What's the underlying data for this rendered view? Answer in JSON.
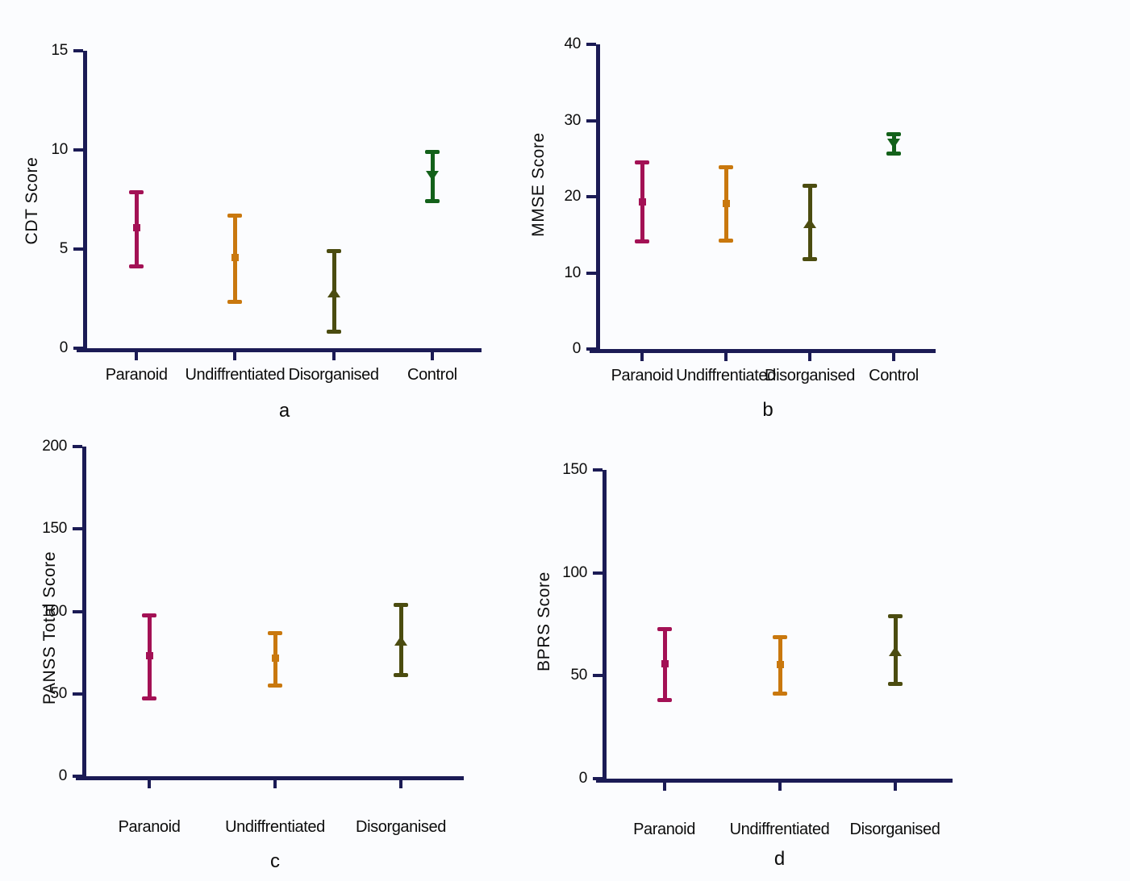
{
  "colors": {
    "background": "#FBFCFE",
    "axis": "#1B1B55",
    "text": "#0C0C0C",
    "paranoid": "#A31155",
    "undiffrentiated": "#C9780E",
    "disorganised": "#4B4C10",
    "control": "#13611A"
  },
  "markers": {
    "Paranoid": "square",
    "Undiffrentiated": "square",
    "Disorganised": "triangle-up",
    "Control": "triangle-down"
  },
  "chart_data": [
    {
      "panel": "a",
      "type": "errorbar",
      "title": "",
      "xlabel": "",
      "ylabel": "CDT Score",
      "ylim": [
        0,
        15
      ],
      "yticks": [
        0,
        5,
        10,
        15
      ],
      "grid": false,
      "legend": "none",
      "categories": [
        "Paranoid",
        "Undiffrentiated",
        "Disorganised",
        "Control"
      ],
      "series": [
        {
          "name": "Paranoid",
          "mean": 6.1,
          "lower": 4.1,
          "upper": 7.9
        },
        {
          "name": "Undiffrentiated",
          "mean": 4.6,
          "lower": 2.3,
          "upper": 6.7
        },
        {
          "name": "Disorganised",
          "mean": 2.8,
          "lower": 0.8,
          "upper": 4.9
        },
        {
          "name": "Control",
          "mean": 8.7,
          "lower": 7.4,
          "upper": 9.9
        }
      ]
    },
    {
      "panel": "b",
      "type": "errorbar",
      "title": "",
      "xlabel": "",
      "ylabel": "MMSE Score",
      "ylim": [
        0,
        40
      ],
      "yticks": [
        0,
        10,
        20,
        30,
        40
      ],
      "grid": false,
      "legend": "none",
      "categories": [
        "Paranoid",
        "Undiffrentiated",
        "Disorganised",
        "Control"
      ],
      "series": [
        {
          "name": "Paranoid",
          "mean": 19.4,
          "lower": 14.1,
          "upper": 24.5
        },
        {
          "name": "Undiffrentiated",
          "mean": 19.2,
          "lower": 14.2,
          "upper": 23.9
        },
        {
          "name": "Disorganised",
          "mean": 16.5,
          "lower": 11.7,
          "upper": 21.5
        },
        {
          "name": "Control",
          "mean": 27.0,
          "lower": 25.6,
          "upper": 28.3
        }
      ]
    },
    {
      "panel": "c",
      "type": "errorbar",
      "title": "",
      "xlabel": "",
      "ylabel": "PANSS Total Score",
      "ylim": [
        0,
        200
      ],
      "yticks": [
        0,
        50,
        100,
        150,
        200
      ],
      "grid": false,
      "legend": "none",
      "categories": [
        "Paranoid",
        "Undiffrentiated",
        "Disorganised"
      ],
      "series": [
        {
          "name": "Paranoid",
          "mean": 73.5,
          "lower": 47,
          "upper": 98
        },
        {
          "name": "Undiffrentiated",
          "mean": 72,
          "lower": 55,
          "upper": 87
        },
        {
          "name": "Disorganised",
          "mean": 82,
          "lower": 61,
          "upper": 104
        }
      ]
    },
    {
      "panel": "d",
      "type": "errorbar",
      "title": "",
      "xlabel": "",
      "ylabel": "BPRS Score",
      "ylim": [
        0,
        150
      ],
      "yticks": [
        0,
        50,
        100,
        150
      ],
      "grid": false,
      "legend": "none",
      "categories": [
        "Paranoid",
        "Undiffrentiated",
        "Disorganised"
      ],
      "series": [
        {
          "name": "Paranoid",
          "mean": 56,
          "lower": 38,
          "upper": 73
        },
        {
          "name": "Undiffrentiated",
          "mean": 55.5,
          "lower": 41,
          "upper": 69
        },
        {
          "name": "Disorganised",
          "mean": 62,
          "lower": 46,
          "upper": 79
        }
      ]
    }
  ]
}
